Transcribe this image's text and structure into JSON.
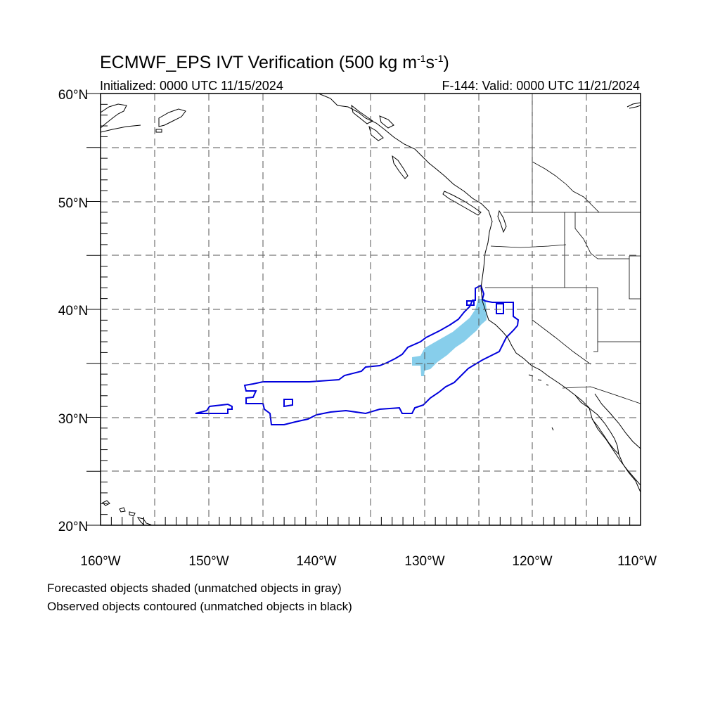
{
  "title": {
    "main": "ECMWF_EPS IVT Verification (500 kg m",
    "exp1": "-1",
    "mid": "s",
    "exp2": "-1",
    "end": ")"
  },
  "subtitle": {
    "left": "Initialized: 0000 UTC 11/15/2024",
    "right": "F-144: Valid: 0000 UTC 11/21/2024"
  },
  "map": {
    "lat_labels": [
      "60°N",
      "50°N",
      "40°N",
      "30°N",
      "20°N"
    ],
    "lon_labels": [
      "160°W",
      "150°W",
      "140°W",
      "130°W",
      "120°W",
      "110°W"
    ],
    "lat_range": [
      20,
      60
    ],
    "lon_range": [
      -160,
      -110
    ],
    "grid_spacing_deg": 5,
    "colors": {
      "forecast_matched": "#87ceeb",
      "observed_matched": "#0000dd",
      "coast": "#000000"
    }
  },
  "captions": {
    "line1": "Forecasted objects shaded (unmatched objects in gray)",
    "line2": "Observed objects contoured (unmatched objects in black)"
  }
}
